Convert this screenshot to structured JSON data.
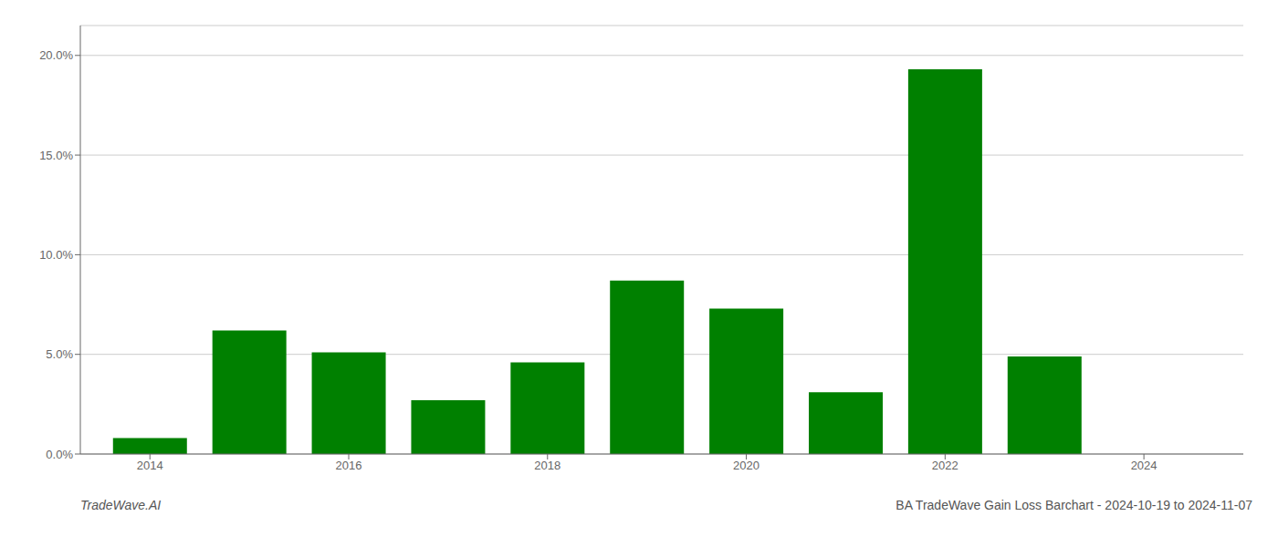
{
  "chart_data": {
    "type": "bar",
    "title": "BA TradeWave Gain Loss Barchart - 2024-10-19 to 2024-11-07",
    "annotations": [
      "TradeWave.AI"
    ],
    "x": [
      2014,
      2015,
      2016,
      2017,
      2018,
      2019,
      2020,
      2021,
      2022,
      2023,
      2024
    ],
    "values": [
      0.008,
      0.062,
      0.051,
      0.027,
      0.046,
      0.087,
      0.073,
      0.031,
      0.193,
      0.049,
      0.0
    ],
    "color": "#008000",
    "xlim": [
      2013.3,
      2025.0
    ],
    "xticks": [
      2014,
      2016,
      2018,
      2020,
      2022,
      2024
    ],
    "ylim": [
      0,
      0.215
    ],
    "yticks": [
      {
        "value": 0.0,
        "label": "0.0%"
      },
      {
        "value": 0.05,
        "label": "5.0%"
      },
      {
        "value": 0.1,
        "label": "10.0%"
      },
      {
        "value": 0.15,
        "label": "15.0%"
      },
      {
        "value": 0.2,
        "label": "20.0%"
      }
    ],
    "grid": true
  }
}
